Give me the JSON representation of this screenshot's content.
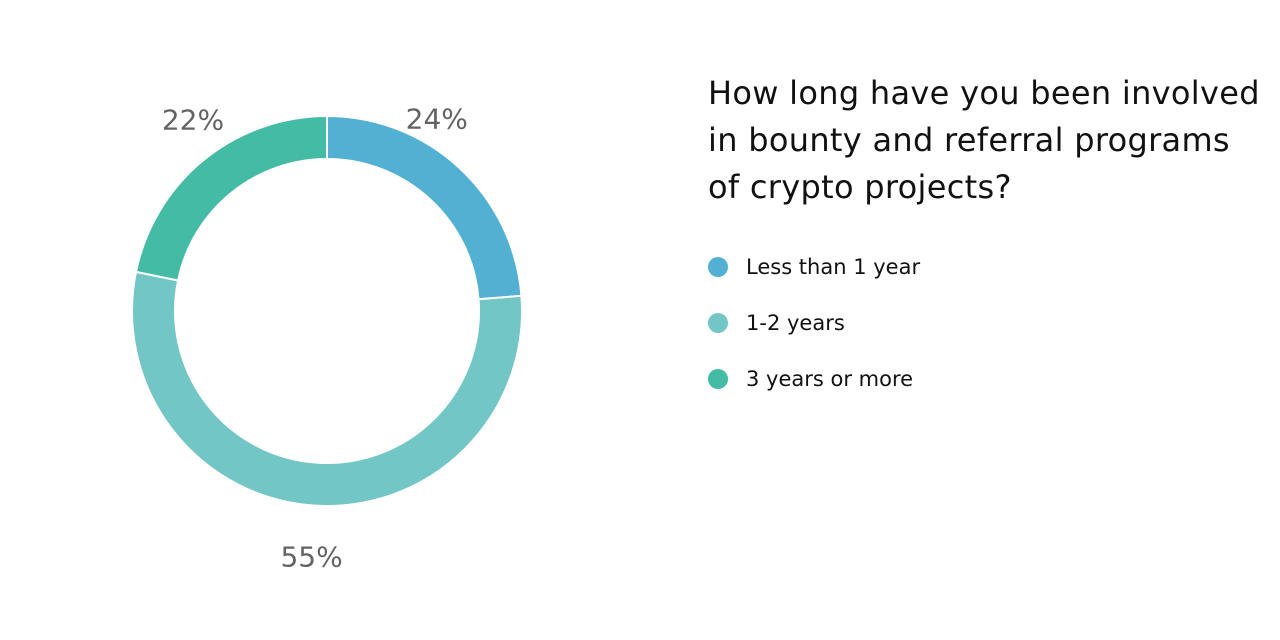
{
  "chart_data": {
    "type": "pie",
    "variant": "donut",
    "title": "How long have you been involved in bounty and referral programs of crypto projects?",
    "categories": [
      "Less than 1 year",
      "1-2 years",
      "3 years or more"
    ],
    "values": [
      24,
      55,
      22
    ],
    "value_labels": [
      "24%",
      "55%",
      "22%"
    ],
    "colors": [
      "#52b1d2",
      "#72c6c5",
      "#43bba5"
    ],
    "legend_position": "right"
  }
}
